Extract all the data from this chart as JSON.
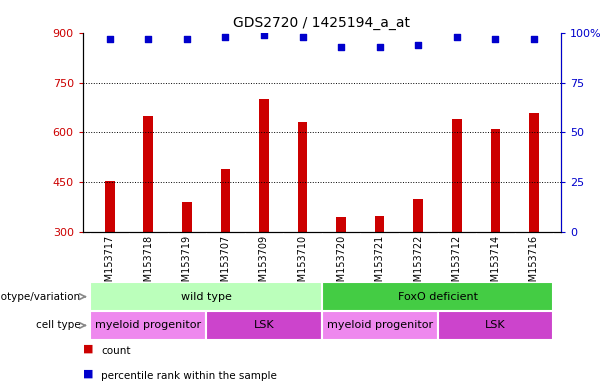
{
  "title": "GDS2720 / 1425194_a_at",
  "samples": [
    "GSM153717",
    "GSM153718",
    "GSM153719",
    "GSM153707",
    "GSM153709",
    "GSM153710",
    "GSM153720",
    "GSM153721",
    "GSM153722",
    "GSM153712",
    "GSM153714",
    "GSM153716"
  ],
  "counts": [
    455,
    650,
    390,
    490,
    700,
    630,
    345,
    350,
    400,
    640,
    610,
    660
  ],
  "percentile_ranks": [
    97,
    97,
    97,
    98,
    99,
    98,
    93,
    93,
    94,
    98,
    97,
    97
  ],
  "ymin": 300,
  "ymax": 900,
  "yticks": [
    300,
    450,
    600,
    750,
    900
  ],
  "right_yticks": [
    0,
    25,
    50,
    75,
    100
  ],
  "bar_color": "#cc0000",
  "dot_color": "#0000cc",
  "genotype_groups": [
    {
      "label": "wild type",
      "start": 0,
      "end": 6,
      "color": "#bbffbb"
    },
    {
      "label": "FoxO deficient",
      "start": 6,
      "end": 12,
      "color": "#44cc44"
    }
  ],
  "cell_type_groups": [
    {
      "label": "myeloid progenitor",
      "start": 0,
      "end": 3,
      "color": "#ee88ee"
    },
    {
      "label": "LSK",
      "start": 3,
      "end": 6,
      "color": "#cc44cc"
    },
    {
      "label": "myeloid progenitor",
      "start": 6,
      "end": 9,
      "color": "#ee88ee"
    },
    {
      "label": "LSK",
      "start": 9,
      "end": 12,
      "color": "#cc44cc"
    }
  ],
  "legend_items": [
    {
      "label": "count",
      "color": "#cc0000",
      "marker_color": "#cc0000"
    },
    {
      "label": "percentile rank within the sample",
      "color": "#000000",
      "marker_color": "#0000cc"
    }
  ],
  "dotted_gridlines": [
    450,
    600,
    750
  ],
  "background_color": "#ffffff",
  "tick_label_bg": "#dddddd"
}
